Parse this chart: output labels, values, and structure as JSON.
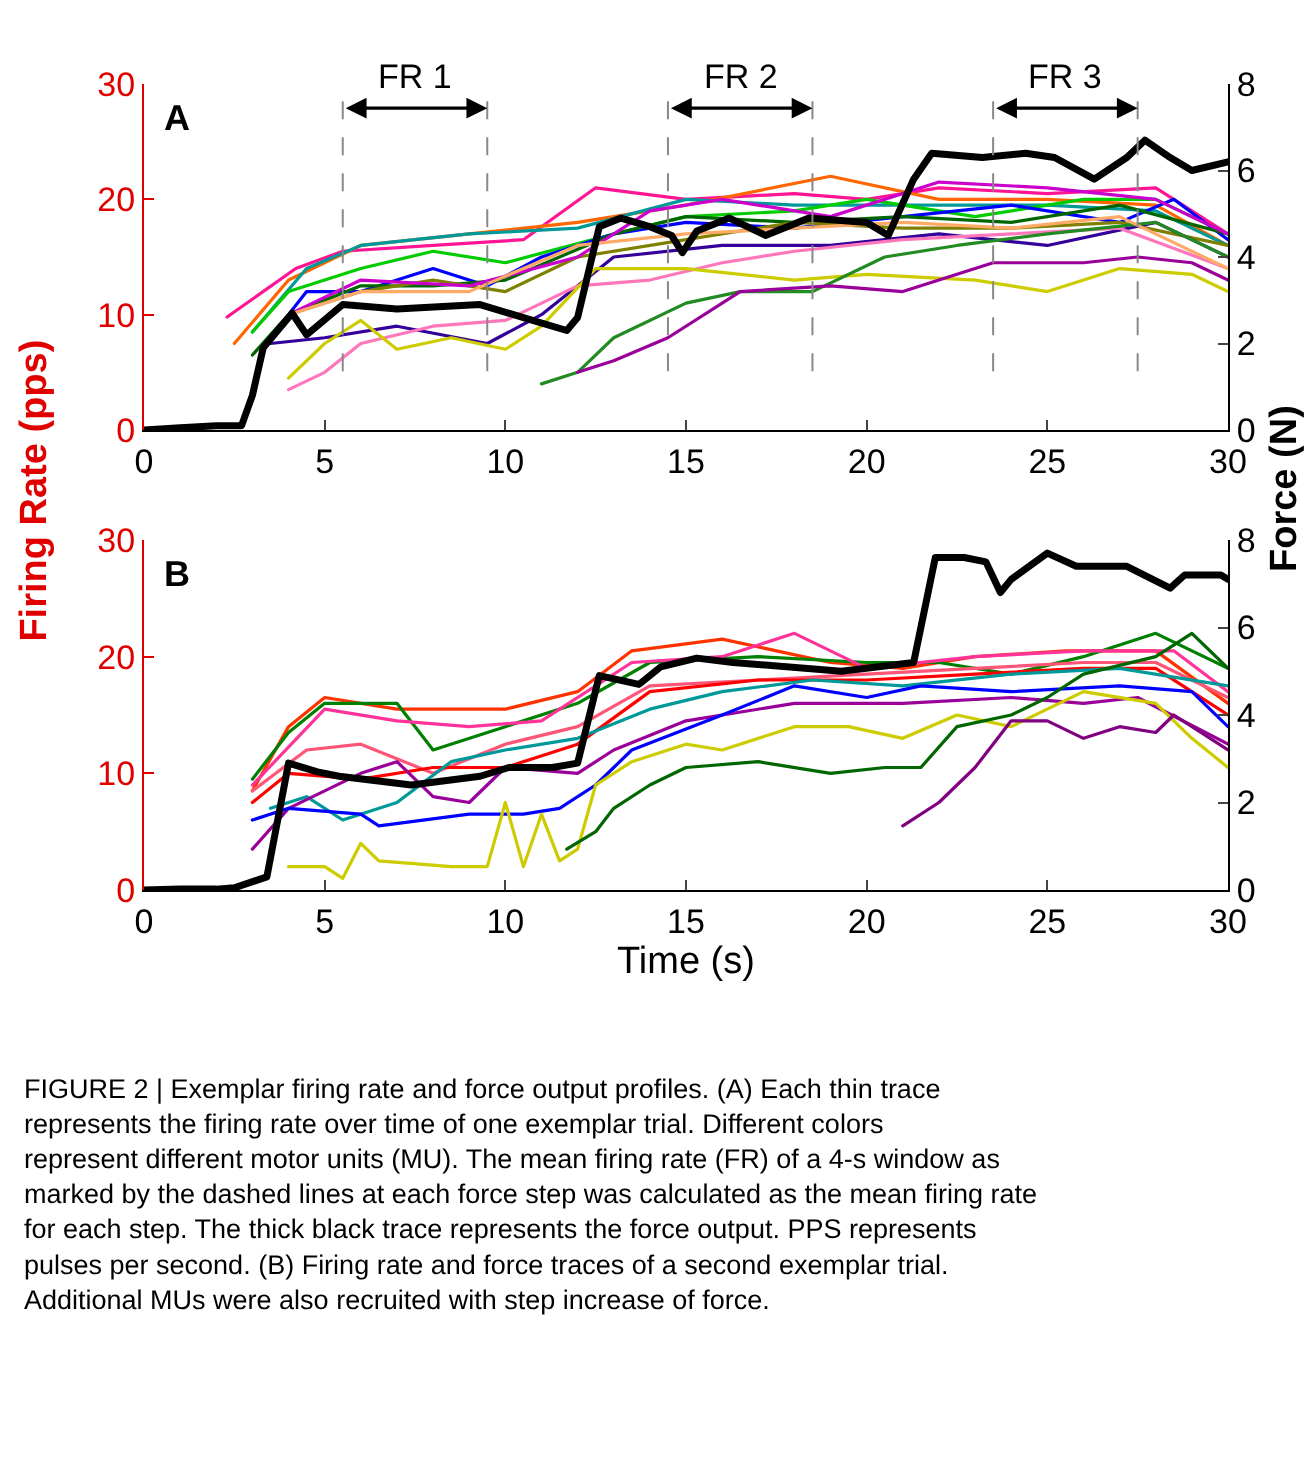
{
  "chart_data": [
    {
      "type": "line",
      "ylabel": "Firing Rate (pps)",
      "y2label": "Force (N)",
      "xlim": [
        0,
        30
      ],
      "xticks": [
        0,
        5,
        10,
        15,
        20,
        25,
        30
      ],
      "ylim": [
        0,
        30
      ],
      "yticks": [
        0,
        10,
        20,
        30
      ],
      "y2lim": [
        0,
        8
      ],
      "y2ticks": [
        0,
        2,
        4,
        6,
        8
      ],
      "line_style": "solid",
      "annotations": [
        "A",
        "FR 1",
        "FR 2",
        "FR 3"
      ],
      "ref_lines": [
        {
          "axis": "x",
          "value": 5.5,
          "color": "#888888",
          "line_style": "dashed"
        },
        {
          "axis": "x",
          "value": 9.5,
          "color": "#888888",
          "line_style": "dashed"
        },
        {
          "axis": "x",
          "value": 14.5,
          "color": "#888888",
          "line_style": "dashed"
        },
        {
          "axis": "x",
          "value": 18.5,
          "color": "#888888",
          "line_style": "dashed"
        },
        {
          "axis": "x",
          "value": 23.5,
          "color": "#888888",
          "line_style": "dashed"
        },
        {
          "axis": "x",
          "value": 27.5,
          "color": "#888888",
          "line_style": "dashed"
        }
      ],
      "series": [
        {
          "color": "#ff1493",
          "x": [
            2.3,
            4.2,
            5.5,
            8,
            10.5,
            12.5,
            15,
            18,
            20,
            22,
            25,
            28,
            30
          ],
          "values": [
            9.8,
            14,
            15.5,
            16,
            16.5,
            21,
            20,
            20.5,
            20,
            21,
            20.5,
            21,
            17
          ]
        },
        {
          "color": "#ff6600",
          "x": [
            2.5,
            4,
            6,
            9,
            12,
            15,
            19,
            22,
            25,
            28,
            30
          ],
          "values": [
            7.5,
            13,
            16,
            17,
            18,
            19.5,
            22,
            20,
            20,
            19.5,
            16
          ]
        },
        {
          "color": "#009999",
          "x": [
            3,
            4.5,
            6,
            9,
            12,
            15,
            18,
            22,
            25,
            28,
            30
          ],
          "values": [
            8.5,
            14,
            16,
            17,
            17.5,
            20,
            19.5,
            19.5,
            19.5,
            19,
            16
          ]
        },
        {
          "color": "#00cc00",
          "x": [
            3,
            4,
            6,
            8,
            10,
            13,
            15,
            18,
            20,
            23,
            26,
            28,
            30
          ],
          "values": [
            8.5,
            12,
            14,
            15.5,
            14.5,
            17,
            18.5,
            19,
            20,
            18.5,
            20,
            20,
            17
          ]
        },
        {
          "color": "#0000ff",
          "x": [
            3.5,
            4.5,
            6,
            8,
            9.5,
            11,
            13,
            15,
            18,
            21,
            24,
            27,
            28.5,
            30
          ],
          "values": [
            8,
            12,
            12,
            14,
            12.5,
            15,
            17,
            18,
            17.5,
            18.5,
            19.5,
            18,
            20,
            16.5
          ]
        },
        {
          "color": "#006600",
          "x": [
            3,
            4,
            6,
            8,
            10,
            13,
            15,
            18,
            21,
            24,
            27,
            30
          ],
          "values": [
            6.5,
            10,
            12.5,
            12.5,
            13,
            17,
            18.5,
            18,
            18.5,
            18,
            19.5,
            17
          ]
        },
        {
          "color": "#808000",
          "x": [
            4,
            6,
            8,
            10,
            12,
            15,
            18,
            21,
            24,
            27,
            30
          ],
          "values": [
            10,
            12,
            13,
            12,
            15,
            16.5,
            18,
            17.5,
            17.5,
            18,
            16
          ]
        },
        {
          "color": "#330099",
          "x": [
            3.5,
            5,
            7,
            9.5,
            11,
            13,
            16,
            19,
            22,
            25,
            28,
            30
          ],
          "values": [
            7.5,
            8,
            9,
            7.5,
            10,
            15,
            16,
            16,
            17,
            16,
            18,
            15
          ]
        },
        {
          "color": "#ff77bb",
          "x": [
            4,
            5,
            6,
            8,
            10,
            12,
            14,
            16,
            18,
            21,
            24,
            27,
            30
          ],
          "values": [
            3.5,
            5,
            7.5,
            9,
            9.5,
            12.5,
            13,
            14.5,
            15.5,
            16.5,
            17,
            17.5,
            14
          ]
        },
        {
          "color": "#cccc00",
          "x": [
            4,
            5,
            6,
            7,
            8.5,
            10,
            11,
            12.5,
            15,
            18,
            20,
            23,
            25,
            27,
            29,
            30
          ],
          "values": [
            4.5,
            7.5,
            9.5,
            7,
            8,
            7,
            9,
            14,
            14,
            13,
            13.5,
            13,
            12,
            14,
            13.5,
            12
          ]
        },
        {
          "color": "#228b22",
          "x": [
            11,
            12,
            13,
            15,
            16.5,
            18.5,
            20.5,
            22.5,
            25,
            28,
            30
          ],
          "values": [
            4,
            5,
            8,
            11,
            12,
            12,
            15,
            16,
            17,
            18,
            15
          ]
        },
        {
          "color": "#990099",
          "x": [
            12,
            13,
            14.5,
            16.5,
            19,
            21,
            23.5,
            26,
            27.5,
            29,
            30
          ],
          "values": [
            5,
            6,
            8,
            12,
            12.5,
            12,
            14.5,
            14.5,
            15,
            14.5,
            13
          ]
        },
        {
          "color": "#cc00cc",
          "x": [
            4,
            6,
            9,
            12,
            14,
            16,
            19,
            22,
            25,
            28,
            30
          ],
          "values": [
            10,
            13,
            12.5,
            15,
            19,
            20,
            18.5,
            21.5,
            21,
            20,
            17
          ]
        },
        {
          "color": "#ffaa66",
          "x": [
            4,
            6,
            9,
            12,
            15,
            18,
            21,
            24,
            27,
            30
          ],
          "values": [
            10,
            12,
            12,
            16,
            17,
            17.5,
            18,
            17.5,
            18.5,
            14
          ]
        },
        {
          "color": "#000000",
          "axis": "y2",
          "x": [
            0,
            1,
            2,
            2.7,
            3.0,
            3.3,
            4.1,
            4.5,
            5.5,
            7,
            9.3,
            10.5,
            11.7,
            12,
            12.6,
            13.2,
            14,
            14.6,
            14.9,
            15.3,
            16.2,
            17.2,
            18.4,
            20,
            20.6,
            21.3,
            21.8,
            23.2,
            24.4,
            25.2,
            26.3,
            27.2,
            27.7,
            28.4,
            29,
            30
          ],
          "values": [
            0,
            0.05,
            0.1,
            0.1,
            0.8,
            1.9,
            2.7,
            2.2,
            2.9,
            2.8,
            2.9,
            2.6,
            2.3,
            2.6,
            4.7,
            4.9,
            4.7,
            4.5,
            4.1,
            4.6,
            4.9,
            4.5,
            4.9,
            4.8,
            4.5,
            5.8,
            6.4,
            6.3,
            6.4,
            6.3,
            5.8,
            6.3,
            6.7,
            6.3,
            6.0,
            6.2
          ]
        }
      ]
    },
    {
      "type": "line",
      "xlabel": "Time (s)",
      "xlim": [
        0,
        30
      ],
      "xticks": [
        0,
        5,
        10,
        15,
        20,
        25,
        30
      ],
      "ylim": [
        0,
        30
      ],
      "yticks": [
        0,
        10,
        20,
        30
      ],
      "y2lim": [
        0,
        8
      ],
      "y2ticks": [
        0,
        2,
        4,
        6,
        8
      ],
      "line_style": "solid",
      "annotations": [
        "B",
        "FIGURE 2 | Exemplar firing rate and force output profiles. (A) Each thin trace represents the firing rate over time of one exemplar trial. Different colors represent different motor units (MU). The mean firing rate (FR) of a 4-s window as marked by the dashed lines at each force step was calculated as the mean firing rate for each step. The thick black trace represents the force output. PPS represents pulses per second. (B) Firing rate and force traces of a second exemplar trial. Additional MUs were also recruited with step increase of force."
      ],
      "series": [
        {
          "color": "#ff3300",
          "x": [
            3,
            4,
            5,
            7,
            10,
            12,
            13.5,
            16,
            19,
            21,
            23,
            25.5,
            28,
            30
          ],
          "values": [
            8.5,
            14,
            16.5,
            15.5,
            15.5,
            17,
            20.5,
            21.5,
            19.5,
            19,
            20,
            20.5,
            20.5,
            16
          ]
        },
        {
          "color": "#008000",
          "x": [
            3,
            4,
            5,
            7,
            8,
            10,
            12,
            14,
            17,
            20,
            22,
            24,
            26,
            28,
            30
          ],
          "values": [
            9.5,
            13.5,
            16,
            16,
            12,
            14,
            16,
            19.5,
            20,
            19.5,
            19.5,
            18.5,
            20,
            22,
            19
          ]
        },
        {
          "color": "#ff3399",
          "x": [
            3,
            5,
            7,
            9,
            11,
            13.5,
            16,
            18,
            20,
            23,
            26,
            28.5,
            30
          ],
          "values": [
            9,
            15.5,
            14.5,
            14,
            14.5,
            19.5,
            20,
            22,
            19,
            20,
            20.5,
            20.5,
            17
          ]
        },
        {
          "color": "#ff5577",
          "x": [
            3,
            4.5,
            6,
            8,
            10,
            12,
            14,
            17,
            20,
            23,
            26,
            28,
            30
          ],
          "values": [
            8.5,
            12,
            12.5,
            10,
            12.5,
            14,
            17.5,
            18,
            18.5,
            19,
            19.5,
            19.5,
            16.5
          ]
        },
        {
          "color": "#ff0000",
          "x": [
            3,
            4,
            6,
            8,
            10,
            12,
            14,
            17,
            20,
            23,
            26,
            28,
            30
          ],
          "values": [
            7.5,
            10,
            9.5,
            10.5,
            10.5,
            12.5,
            17,
            18,
            18,
            18.5,
            19,
            19,
            15
          ]
        },
        {
          "color": "#009999",
          "x": [
            3.5,
            4.5,
            5.5,
            7,
            8.5,
            10,
            12,
            14,
            16,
            18.5,
            21,
            24,
            27,
            30
          ],
          "values": [
            7,
            8,
            6,
            7.5,
            11,
            12,
            13,
            15.5,
            17,
            18,
            17.5,
            18.5,
            19,
            17.5
          ]
        },
        {
          "color": "#990099",
          "x": [
            3,
            4,
            6,
            7,
            8,
            9,
            10,
            12,
            13,
            15,
            18,
            21,
            24,
            26,
            27.5,
            30
          ],
          "values": [
            3.5,
            7,
            10,
            11,
            8,
            7.5,
            10.5,
            10,
            12,
            14.5,
            16,
            16,
            16.5,
            16,
            16.5,
            12.5
          ]
        },
        {
          "color": "#0000ff",
          "x": [
            3,
            4,
            6,
            6.5,
            9,
            10.5,
            11.5,
            12.5,
            13.5,
            16,
            18,
            20,
            21.5,
            24,
            27,
            29,
            30
          ],
          "values": [
            6,
            7,
            6.5,
            5.5,
            6.5,
            6.5,
            7,
            9,
            12,
            15,
            17.5,
            16.5,
            17.5,
            17,
            17.5,
            17,
            14
          ]
        },
        {
          "color": "#cccc00",
          "x": [
            4,
            5,
            5.5,
            6,
            6.5,
            8.5,
            9.5,
            10,
            10.5,
            11,
            11.5,
            12,
            12.5,
            13.5,
            15,
            16,
            18,
            19.5,
            21,
            22.5,
            24,
            26,
            28,
            29,
            30
          ],
          "values": [
            2,
            2,
            1,
            4,
            2.5,
            2,
            2,
            7.5,
            2,
            6.5,
            2.5,
            3.5,
            9,
            11,
            12.5,
            12,
            14,
            14,
            13,
            15,
            14,
            17,
            16,
            13,
            10.5
          ]
        },
        {
          "color": "#006600",
          "x": [
            11.7,
            12.5,
            13,
            14,
            15,
            17,
            19,
            20.5,
            21.5,
            22.5,
            24,
            25,
            26,
            28,
            29,
            30
          ],
          "values": [
            3.5,
            5,
            7,
            9,
            10.5,
            11,
            10,
            10.5,
            10.5,
            14,
            15,
            16.5,
            18.5,
            20,
            22,
            19
          ]
        },
        {
          "color": "#800080",
          "x": [
            21,
            22,
            23,
            24,
            25,
            26,
            27,
            28,
            28.5,
            30
          ],
          "values": [
            5.5,
            7.5,
            10.5,
            14.5,
            14.5,
            13,
            14,
            13.5,
            15,
            12
          ]
        },
        {
          "color": "#000000",
          "axis": "y2",
          "x": [
            0,
            1,
            2,
            2.5,
            3.4,
            4,
            4.8,
            5.4,
            7.4,
            9.3,
            10.1,
            11.3,
            12,
            12.6,
            13.7,
            14.3,
            15.3,
            16.3,
            19.3,
            21.3,
            21.9,
            22.7,
            23.3,
            23.7,
            24,
            25,
            25.8,
            27.2,
            28.4,
            28.8,
            29.8,
            30
          ],
          "values": [
            0,
            0.02,
            0.02,
            0.05,
            0.3,
            2.9,
            2.7,
            2.6,
            2.4,
            2.6,
            2.8,
            2.8,
            2.9,
            4.9,
            4.7,
            5.1,
            5.3,
            5.2,
            5.0,
            5.2,
            7.6,
            7.6,
            7.5,
            6.8,
            7.1,
            7.7,
            7.4,
            7.4,
            6.9,
            7.2,
            7.2,
            7.1
          ]
        }
      ]
    }
  ]
}
